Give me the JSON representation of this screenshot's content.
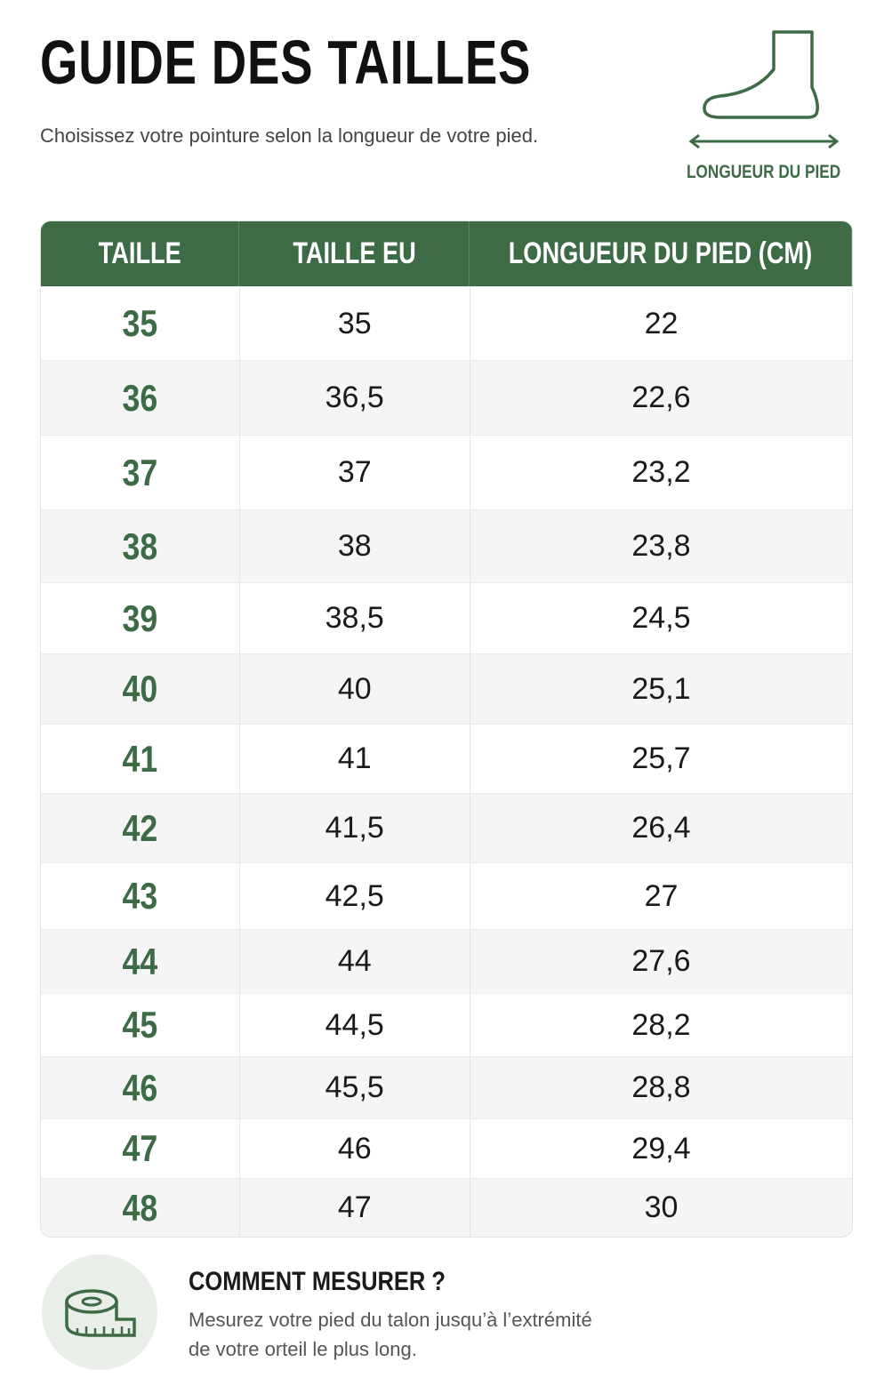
{
  "header": {
    "title": "GUIDE DES TAILLES",
    "subtitle": "Choisissez votre pointure selon la longueur de votre pied.",
    "diagram_label": "LONGUEUR DU PIED"
  },
  "table": {
    "columns": [
      "TAILLE",
      "TAILLE EU",
      "LONGUEUR DU PIED (CM)"
    ],
    "rows": [
      [
        "35",
        "35",
        "22"
      ],
      [
        "36",
        "36,5",
        "22,6"
      ],
      [
        "37",
        "37",
        "23,2"
      ],
      [
        "38",
        "38",
        "23,8"
      ],
      [
        "39",
        "38,5",
        "24,5"
      ],
      [
        "40",
        "40",
        "25,1"
      ],
      [
        "41",
        "41",
        "25,7"
      ],
      [
        "42",
        "41,5",
        "26,4"
      ],
      [
        "43",
        "42,5",
        "27"
      ],
      [
        "44",
        "44",
        "27,6"
      ],
      [
        "45",
        "44,5",
        "28,2"
      ],
      [
        "46",
        "45,5",
        "28,8"
      ],
      [
        "47",
        "46",
        "29,4"
      ],
      [
        "48",
        "47",
        "30"
      ]
    ]
  },
  "footer": {
    "title": "COMMENT MESURER ?",
    "lines": [
      "Mesurez votre pied du talon jusqu’à l’extrémité",
      "de votre orteil le plus long."
    ]
  }
}
